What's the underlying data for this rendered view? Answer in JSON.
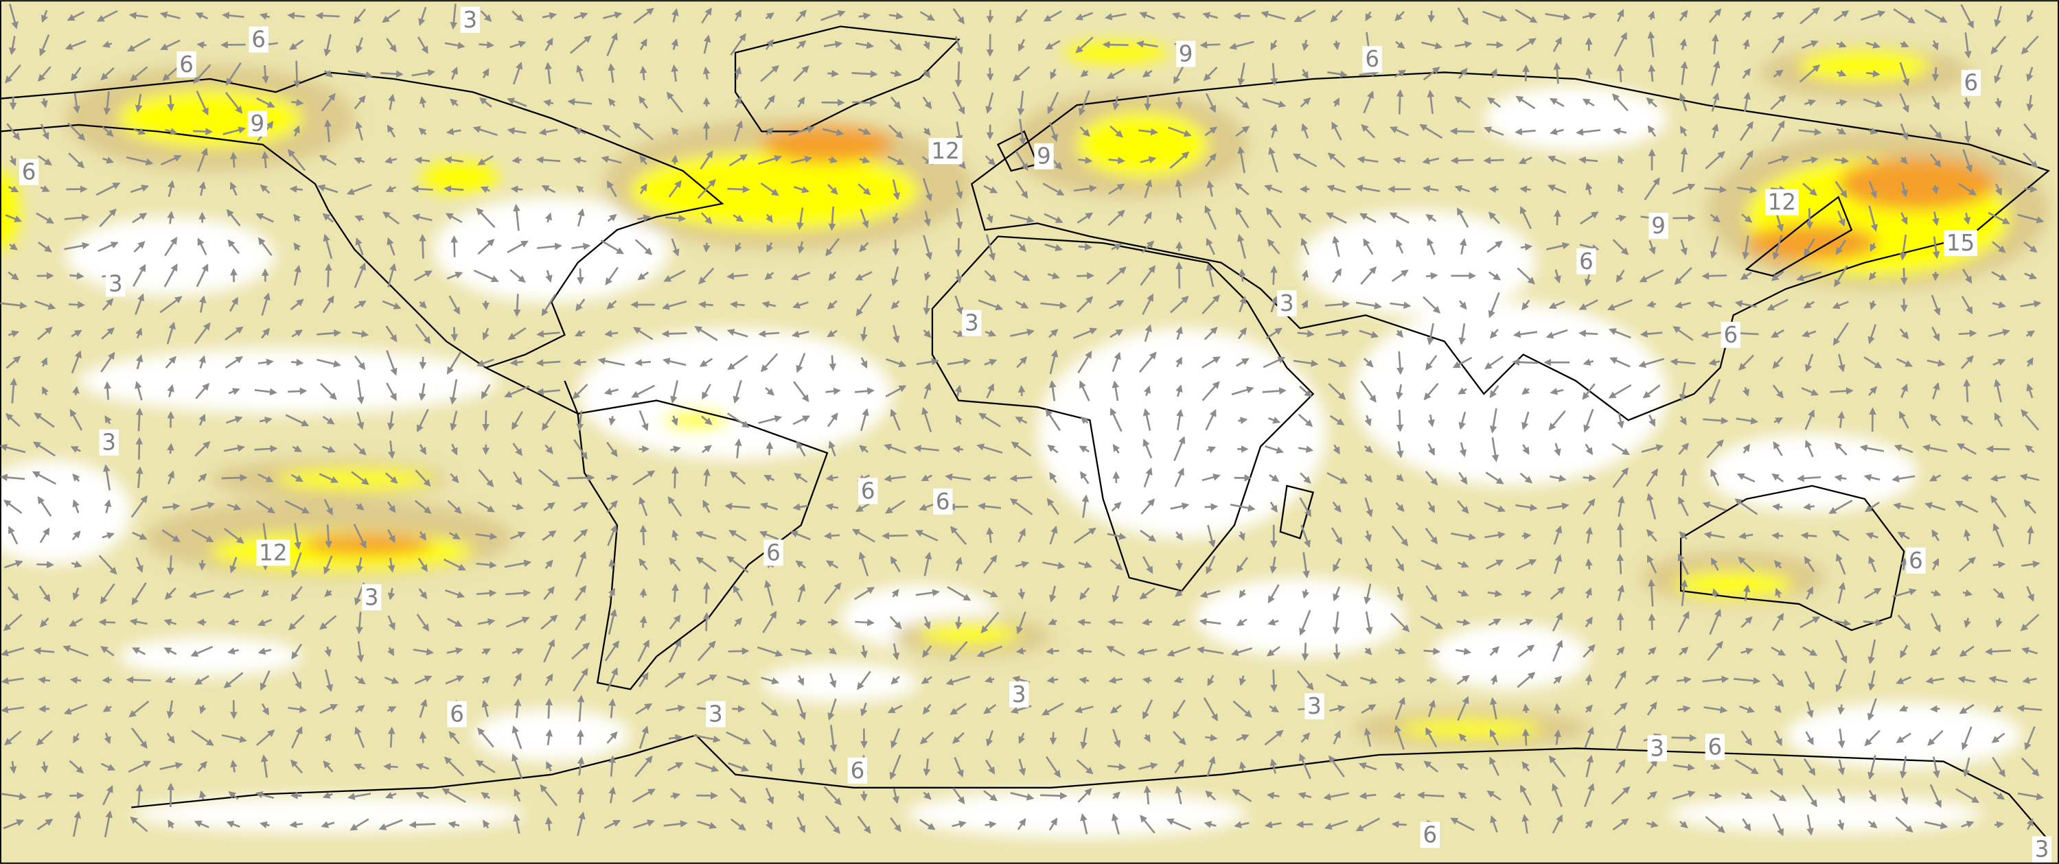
{
  "contour_labels": [
    3,
    6,
    6,
    9,
    6,
    9,
    6,
    6,
    12,
    9,
    12,
    9,
    15,
    6,
    3,
    3,
    3,
    6,
    3,
    6,
    6,
    12,
    6,
    6,
    3,
    3,
    3,
    6,
    3,
    6,
    3,
    6,
    6,
    3
  ]
}
